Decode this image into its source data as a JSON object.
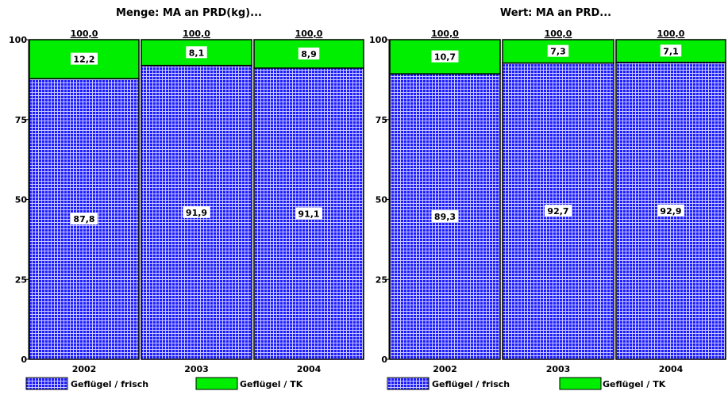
{
  "colors": {
    "frisch_fill": "#1c1cff",
    "frisch_grid": "#c8c8ff",
    "tk_fill": "#00ee00",
    "border": "#000000"
  },
  "chart_data": [
    {
      "type": "bar",
      "stacked": true,
      "title": "Menge: MA an PRD(kg)...",
      "categories": [
        "2002",
        "2003",
        "2004"
      ],
      "series": [
        {
          "name": "Geflügel / frisch",
          "values": [
            87.8,
            91.9,
            91.1
          ],
          "labels": [
            "87,8",
            "91,9",
            "91,1"
          ]
        },
        {
          "name": "Geflügel / TK",
          "values": [
            12.2,
            8.1,
            8.9
          ],
          "labels": [
            "12,2",
            "8,1",
            "8,9"
          ]
        }
      ],
      "totals": [
        "100,0",
        "100,0",
        "100,0"
      ],
      "ylim": [
        0,
        100
      ],
      "yticks": [
        0,
        25,
        50,
        75,
        100
      ],
      "ytick_labels": [
        "0",
        "25",
        "50",
        "75",
        "100"
      ],
      "legend": "bottom"
    },
    {
      "type": "bar",
      "stacked": true,
      "title": "Wert: MA an PRD...",
      "categories": [
        "2002",
        "2003",
        "2004"
      ],
      "series": [
        {
          "name": "Geflügel / frisch",
          "values": [
            89.3,
            92.7,
            92.9
          ],
          "labels": [
            "89,3",
            "92,7",
            "92,9"
          ]
        },
        {
          "name": "Geflügel / TK",
          "values": [
            10.7,
            7.3,
            7.1
          ],
          "labels": [
            "10,7",
            "7,3",
            "7,1"
          ]
        }
      ],
      "totals": [
        "100,0",
        "100,0",
        "100,0"
      ],
      "ylim": [
        0,
        100
      ],
      "yticks": [
        0,
        25,
        50,
        75,
        100
      ],
      "ytick_labels": [
        "0",
        "25",
        "50",
        "75",
        "100"
      ],
      "legend": "bottom"
    }
  ]
}
